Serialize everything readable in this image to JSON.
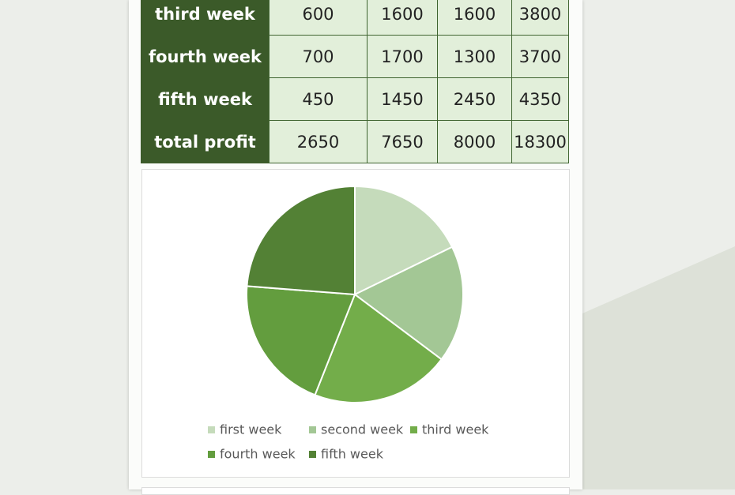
{
  "table": {
    "rows": [
      [
        "third week",
        600,
        1600,
        1600,
        3800
      ],
      [
        "fourth week",
        700,
        1700,
        1300,
        3700
      ],
      [
        "fifth week",
        450,
        1450,
        2450,
        4350
      ],
      [
        "total profit",
        2650,
        7650,
        8000,
        18300
      ]
    ]
  },
  "chart_data": {
    "type": "pie",
    "categories": [
      "first week",
      "second week",
      "third week",
      "fourth week",
      "fifth week"
    ],
    "values": [
      3250,
      3200,
      3800,
      3700,
      4350
    ],
    "colors": [
      "#c5dbbb",
      "#a3c795",
      "#73ad4a",
      "#639d3e",
      "#538135"
    ]
  }
}
